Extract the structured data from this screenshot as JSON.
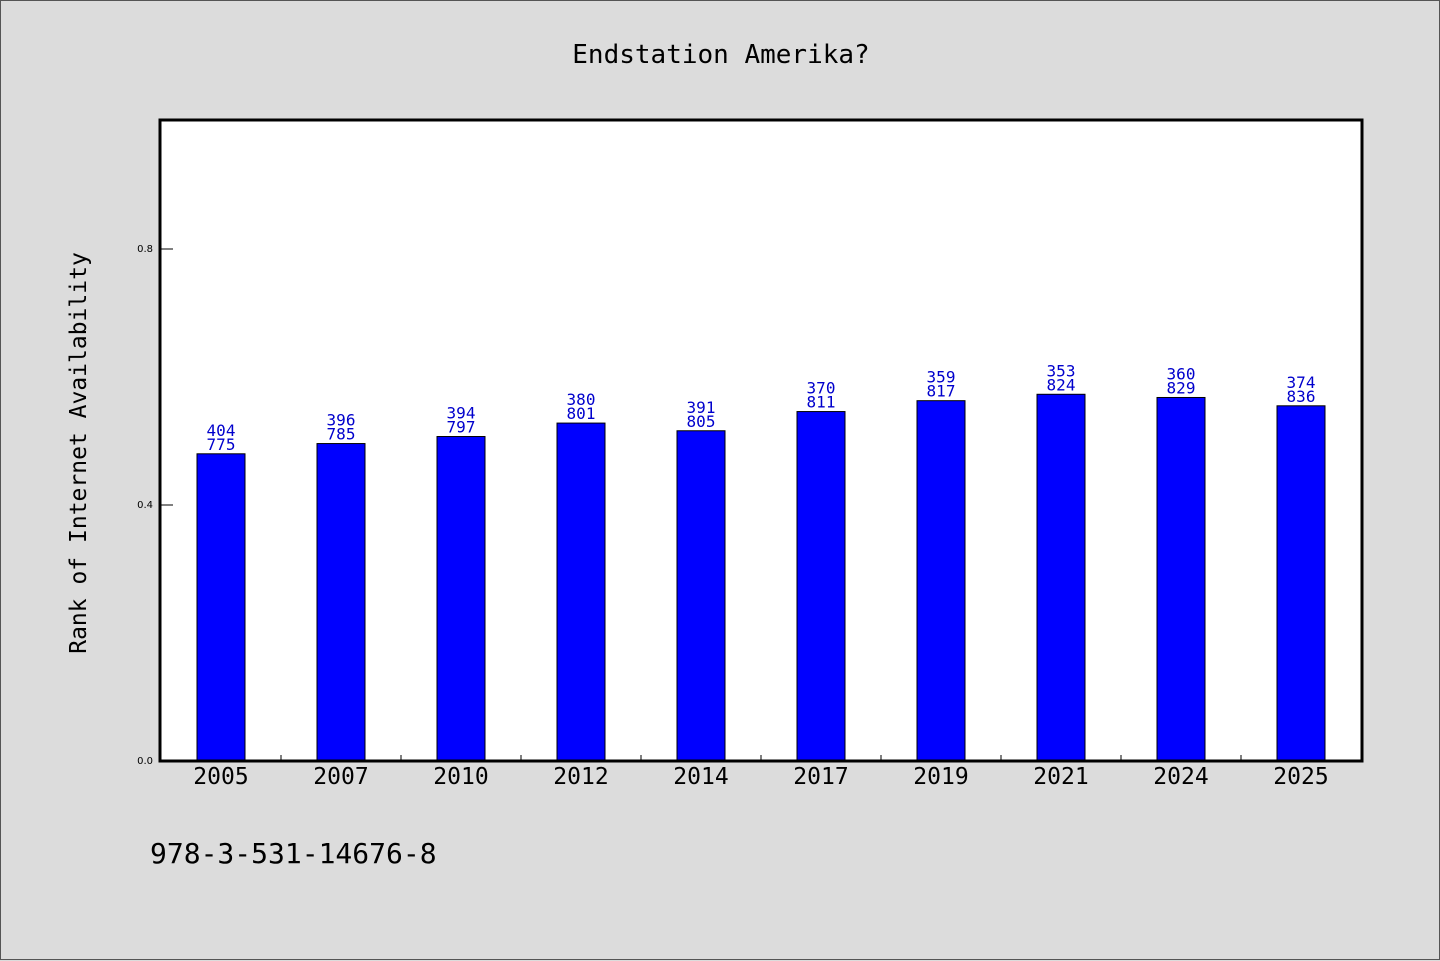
{
  "chart_data": {
    "type": "bar",
    "title": "Endstation Amerika?",
    "ylabel": "Rank of Internet Availability",
    "xlabel": "",
    "categories": [
      "2005",
      "2007",
      "2010",
      "2012",
      "2014",
      "2017",
      "2019",
      "2021",
      "2024",
      "2025"
    ],
    "values": [
      0.48,
      0.496,
      0.507,
      0.528,
      0.516,
      0.546,
      0.563,
      0.573,
      0.568,
      0.555
    ],
    "labels_top": [
      "404",
      "396",
      "394",
      "380",
      "391",
      "370",
      "359",
      "353",
      "360",
      "374"
    ],
    "labels_bottom": [
      "775",
      "785",
      "797",
      "801",
      "805",
      "811",
      "817",
      "824",
      "829",
      "836"
    ],
    "ylim": [
      0,
      1.0
    ],
    "yticks": [
      0.0,
      0.4,
      0.8
    ],
    "ytick_labels": [
      "0.0",
      "0.4",
      "0.8"
    ],
    "grid": false,
    "colors": {
      "bar": "#0000ff",
      "bar_label": "#0000cc",
      "background": "#dcdcdc",
      "plot_bg": "#ffffff"
    }
  },
  "footer": {
    "isbn": "978-3-531-14676-8"
  }
}
